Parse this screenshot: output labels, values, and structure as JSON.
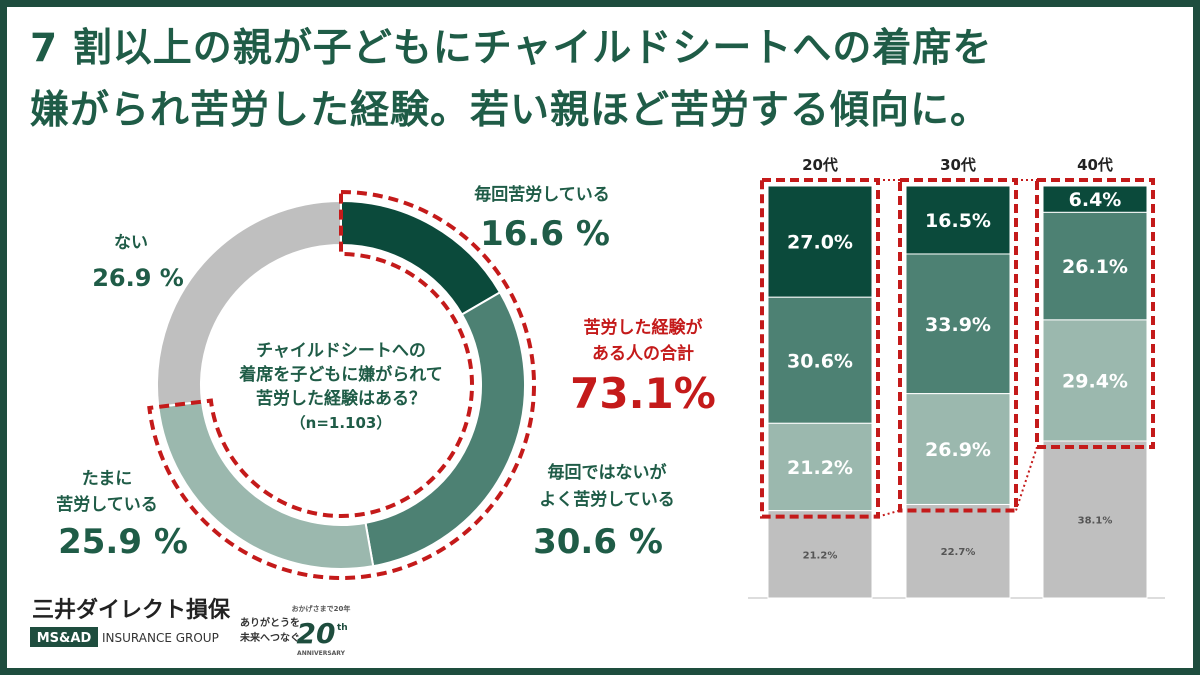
{
  "title": {
    "line1": "7 割以上の親が子どもにチャイルドシートへの着席を",
    "line2": "嫌がられ苦労した経験。若い親ほど苦労する傾向に。"
  },
  "colors": {
    "dark": "#0b4a3b",
    "mid": "#4d8173",
    "light": "#9bb8ae",
    "none": "#bfbfbf",
    "red_dash": "#c41a1a",
    "text_green": "#1f5c47",
    "total_red": "#c41a1a"
  },
  "donut": {
    "center_lines": [
      "チャイルドシートへの",
      "着席を子どもに嫌がられて",
      "苦労した経験はある？",
      "（n=1.103）"
    ],
    "total_label_lines": [
      "苦労した経験が",
      "ある人の合計"
    ],
    "total_value": "73.1%",
    "segment_labels": [
      {
        "lines": [
          "毎回苦労している"
        ],
        "value": "16.6 %"
      },
      {
        "lines": [
          "毎回ではないが",
          "よく苦労している"
        ],
        "value": "30.6 %"
      },
      {
        "lines": [
          "たまに",
          "苦労している"
        ],
        "value": "25.9 %"
      },
      {
        "lines": [
          "ない"
        ],
        "value": "26.9 %"
      }
    ]
  },
  "chart_data": [
    {
      "type": "pie",
      "title": "チャイルドシートへの着席を子どもに嫌がられて苦労した経験はある？",
      "categories": [
        "毎回苦労している",
        "毎回ではないがよく苦労している",
        "たまに苦労している",
        "ない"
      ],
      "values": [
        16.6,
        30.6,
        25.9,
        26.9
      ],
      "n": "1.103"
    },
    {
      "type": "bar",
      "stacked": true,
      "categories": [
        "20代",
        "30代",
        "40代"
      ],
      "series": [
        {
          "values": [
            27.0,
            16.5,
            6.4
          ],
          "labels": [
            "27.0%",
            "16.5%",
            "6.4%"
          ]
        },
        {
          "values": [
            30.6,
            33.9,
            26.1
          ],
          "labels": [
            "30.6%",
            "33.9%",
            "26.1%"
          ]
        },
        {
          "values": [
            21.2,
            26.9,
            29.4
          ],
          "labels": [
            "21.2%",
            "26.9%",
            "29.4%"
          ]
        },
        {
          "values": [
            21.2,
            22.7,
            38.1
          ],
          "labels": [
            "21.2%",
            "22.7%",
            "38.1%"
          ]
        }
      ],
      "ylim": [
        0,
        100
      ]
    }
  ],
  "logo": {
    "company": "三井ダイレクト損保",
    "group_left": "MS&AD",
    "group_right": "INSURANCE GROUP",
    "tagline_lines": [
      "ありがとうを",
      "未来へつなぐ"
    ],
    "anniv_top": "おかげさまで20年",
    "anniv_number": "20",
    "anniv_suffix": "th",
    "anniv_bottom": "ANNIVERSARY"
  }
}
